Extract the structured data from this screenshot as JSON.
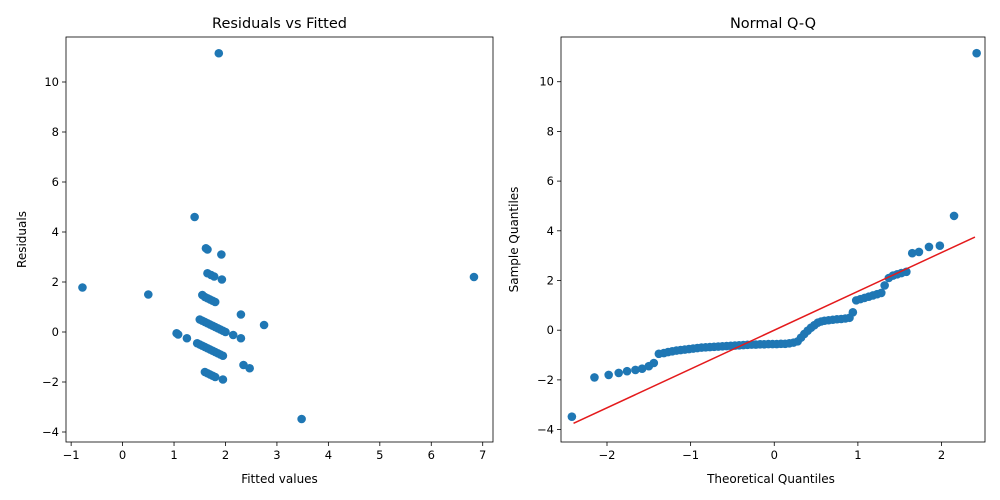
{
  "chart_data": [
    {
      "type": "scatter",
      "title": "Residuals vs Fitted",
      "xlabel": "Fitted values",
      "ylabel": "Residuals",
      "xlim": [
        -1.1,
        7.2
      ],
      "ylim": [
        -4.4,
        11.8
      ],
      "xticks": [
        -1,
        0,
        1,
        2,
        3,
        4,
        5,
        6,
        7
      ],
      "yticks": [
        -4,
        -2,
        0,
        2,
        4,
        6,
        8,
        10
      ],
      "marker_color": "#1f77b4",
      "points": [
        [
          1.87,
          11.15
        ],
        [
          1.4,
          4.6
        ],
        [
          1.62,
          3.35
        ],
        [
          1.65,
          3.3
        ],
        [
          1.92,
          3.1
        ],
        [
          1.65,
          2.35
        ],
        [
          1.72,
          2.28
        ],
        [
          1.78,
          2.22
        ],
        [
          1.93,
          2.1
        ],
        [
          -0.78,
          1.78
        ],
        [
          0.5,
          1.5
        ],
        [
          6.83,
          2.2
        ],
        [
          1.55,
          1.48
        ],
        [
          1.6,
          1.4
        ],
        [
          1.65,
          1.35
        ],
        [
          1.7,
          1.3
        ],
        [
          1.75,
          1.25
        ],
        [
          1.8,
          1.2
        ],
        [
          2.3,
          0.7
        ],
        [
          2.75,
          0.28
        ],
        [
          1.5,
          0.5
        ],
        [
          1.55,
          0.45
        ],
        [
          1.6,
          0.4
        ],
        [
          1.65,
          0.35
        ],
        [
          1.7,
          0.3
        ],
        [
          1.75,
          0.25
        ],
        [
          1.8,
          0.2
        ],
        [
          1.85,
          0.15
        ],
        [
          1.9,
          0.1
        ],
        [
          1.95,
          0.05
        ],
        [
          2.0,
          0.0
        ],
        [
          1.05,
          -0.05
        ],
        [
          1.08,
          -0.1
        ],
        [
          2.15,
          -0.12
        ],
        [
          1.25,
          -0.25
        ],
        [
          2.3,
          -0.25
        ],
        [
          1.45,
          -0.45
        ],
        [
          1.5,
          -0.5
        ],
        [
          1.55,
          -0.55
        ],
        [
          1.6,
          -0.6
        ],
        [
          1.65,
          -0.65
        ],
        [
          1.7,
          -0.7
        ],
        [
          1.75,
          -0.75
        ],
        [
          1.8,
          -0.8
        ],
        [
          1.85,
          -0.85
        ],
        [
          1.9,
          -0.9
        ],
        [
          1.95,
          -0.95
        ],
        [
          2.35,
          -1.32
        ],
        [
          2.47,
          -1.45
        ],
        [
          1.6,
          -1.6
        ],
        [
          1.65,
          -1.65
        ],
        [
          1.7,
          -1.7
        ],
        [
          1.75,
          -1.75
        ],
        [
          1.8,
          -1.8
        ],
        [
          1.95,
          -1.9
        ],
        [
          3.48,
          -3.48
        ]
      ]
    },
    {
      "type": "scatter",
      "title": "Normal Q-Q",
      "xlabel": "Theoretical Quantiles",
      "ylabel": "Sample Quantiles",
      "xlim": [
        -2.55,
        2.52
      ],
      "ylim": [
        -4.5,
        11.8
      ],
      "xticks": [
        -2,
        -1,
        0,
        1,
        2
      ],
      "yticks": [
        -4,
        -2,
        0,
        2,
        4,
        6,
        8,
        10
      ],
      "marker_color": "#1f77b4",
      "line_color": "#e41a1c",
      "reference_line": [
        [
          -2.4,
          -3.75
        ],
        [
          2.4,
          3.75
        ]
      ],
      "points": [
        [
          -2.42,
          -3.48
        ],
        [
          -2.15,
          -1.9
        ],
        [
          -1.98,
          -1.8
        ],
        [
          -1.86,
          -1.72
        ],
        [
          -1.76,
          -1.65
        ],
        [
          -1.66,
          -1.6
        ],
        [
          -1.58,
          -1.55
        ],
        [
          -1.5,
          -1.45
        ],
        [
          -1.44,
          -1.32
        ],
        [
          -1.38,
          -0.95
        ],
        [
          -1.32,
          -0.92
        ],
        [
          -1.27,
          -0.88
        ],
        [
          -1.22,
          -0.85
        ],
        [
          -1.17,
          -0.82
        ],
        [
          -1.12,
          -0.8
        ],
        [
          -1.07,
          -0.78
        ],
        [
          -1.02,
          -0.76
        ],
        [
          -0.97,
          -0.74
        ],
        [
          -0.92,
          -0.72
        ],
        [
          -0.87,
          -0.7
        ],
        [
          -0.82,
          -0.69
        ],
        [
          -0.77,
          -0.68
        ],
        [
          -0.72,
          -0.67
        ],
        [
          -0.67,
          -0.66
        ],
        [
          -0.62,
          -0.65
        ],
        [
          -0.57,
          -0.64
        ],
        [
          -0.52,
          -0.63
        ],
        [
          -0.47,
          -0.62
        ],
        [
          -0.42,
          -0.61
        ],
        [
          -0.37,
          -0.6
        ],
        [
          -0.32,
          -0.59
        ],
        [
          -0.27,
          -0.58
        ],
        [
          -0.22,
          -0.58
        ],
        [
          -0.17,
          -0.57
        ],
        [
          -0.12,
          -0.57
        ],
        [
          -0.07,
          -0.56
        ],
        [
          -0.02,
          -0.56
        ],
        [
          0.03,
          -0.56
        ],
        [
          0.08,
          -0.55
        ],
        [
          0.13,
          -0.55
        ],
        [
          0.18,
          -0.53
        ],
        [
          0.23,
          -0.5
        ],
        [
          0.28,
          -0.45
        ],
        [
          0.32,
          -0.3
        ],
        [
          0.36,
          -0.15
        ],
        [
          0.4,
          -0.02
        ],
        [
          0.44,
          0.1
        ],
        [
          0.48,
          0.2
        ],
        [
          0.52,
          0.3
        ],
        [
          0.56,
          0.35
        ],
        [
          0.6,
          0.38
        ],
        [
          0.65,
          0.4
        ],
        [
          0.7,
          0.42
        ],
        [
          0.75,
          0.44
        ],
        [
          0.8,
          0.45
        ],
        [
          0.85,
          0.47
        ],
        [
          0.9,
          0.5
        ],
        [
          0.94,
          0.72
        ],
        [
          0.98,
          1.2
        ],
        [
          1.03,
          1.25
        ],
        [
          1.08,
          1.3
        ],
        [
          1.13,
          1.35
        ],
        [
          1.18,
          1.4
        ],
        [
          1.23,
          1.45
        ],
        [
          1.28,
          1.5
        ],
        [
          1.32,
          1.8
        ],
        [
          1.37,
          2.1
        ],
        [
          1.42,
          2.2
        ],
        [
          1.47,
          2.25
        ],
        [
          1.52,
          2.3
        ],
        [
          1.58,
          2.35
        ],
        [
          1.65,
          3.1
        ],
        [
          1.73,
          3.15
        ],
        [
          1.85,
          3.35
        ],
        [
          1.98,
          3.4
        ],
        [
          2.15,
          4.6
        ],
        [
          2.42,
          11.15
        ]
      ]
    }
  ]
}
